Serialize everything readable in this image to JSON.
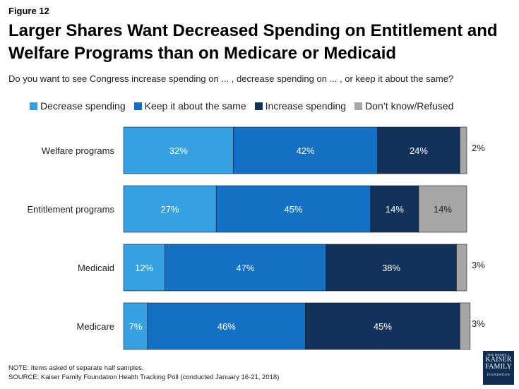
{
  "figure_label": "Figure 12",
  "title": "Larger Shares Want Decreased Spending on Entitlement and Welfare Programs than on Medicare or Medicaid",
  "subtitle": "Do you want to see Congress increase spending on ... , decrease spending on ... , or keep it about the same?",
  "notes": {
    "note": "NOTE: Items asked of separate half samples.",
    "source": "SOURCE: Kaiser Family Foundation Health Tracking Poll (conducted January 16-21, 2018)"
  },
  "logo": {
    "line1": "THE HENRY J.",
    "line2": "KAISER",
    "line3": "FAMILY",
    "line4": "FOUNDATION"
  },
  "chart_data": {
    "type": "bar",
    "orientation": "horizontal",
    "stacked": true,
    "xlim": [
      0,
      100
    ],
    "legend_position": "top",
    "categories": [
      "Welfare programs",
      "Entitlement programs",
      "Medicaid",
      "Medicare"
    ],
    "series": [
      {
        "name": "Decrease spending",
        "color": "#36a1e0",
        "values": [
          32,
          27,
          12,
          7
        ],
        "labels": [
          "32%",
          "27%",
          "12%",
          "7%"
        ]
      },
      {
        "name": "Keep it about the same",
        "color": "#1470c4",
        "values": [
          42,
          45,
          47,
          46
        ],
        "labels": [
          "42%",
          "45%",
          "47%",
          "46%"
        ]
      },
      {
        "name": "Increase spending",
        "color": "#13325a",
        "values": [
          24,
          14,
          38,
          45
        ],
        "labels": [
          "24%",
          "14%",
          "38%",
          "45%"
        ]
      },
      {
        "name": "Don’t know/Refused",
        "color": "#a6a6a6",
        "values": [
          2,
          14,
          3,
          3
        ],
        "labels": [
          "2%",
          "14%",
          "3%",
          "3%"
        ]
      }
    ]
  }
}
